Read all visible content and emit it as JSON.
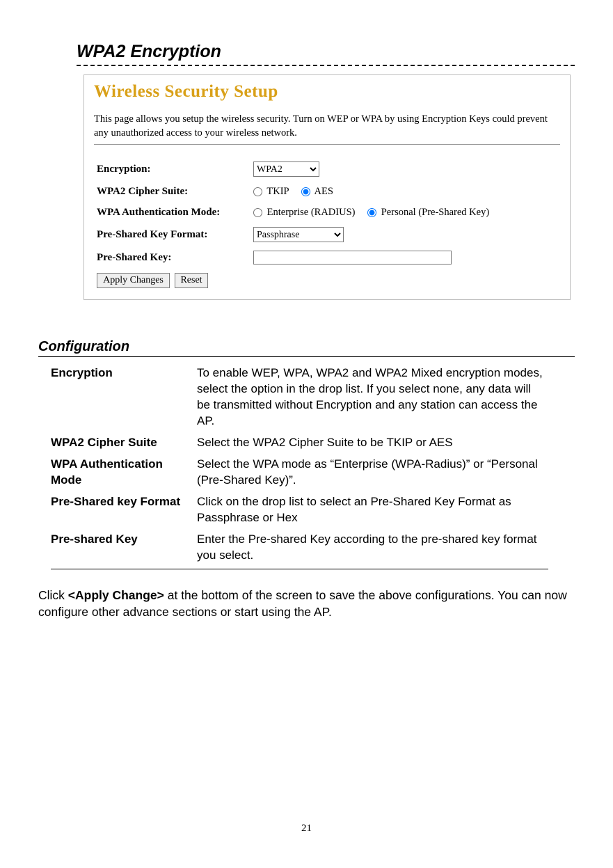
{
  "heading": "WPA2 Encryption",
  "screenshot": {
    "title": "Wireless Security Setup",
    "description": "This page allows you setup the wireless security. Turn on WEP or WPA by using Encryption Keys could prevent any unauthorized access to your wireless network.",
    "fields": {
      "encryption_label": "Encryption:",
      "encryption_value": "WPA2",
      "cipher_label": "WPA2 Cipher Suite:",
      "cipher_tkip": "TKIP",
      "cipher_aes": "AES",
      "auth_label": "WPA Authentication Mode:",
      "auth_enterprise": "Enterprise (RADIUS)",
      "auth_personal": "Personal (Pre-Shared Key)",
      "pskformat_label": "Pre-Shared Key Format:",
      "pskformat_value": "Passphrase",
      "psk_label": "Pre-Shared Key:",
      "apply_btn": "Apply Changes",
      "reset_btn": "Reset"
    }
  },
  "config": {
    "heading": "Configuration",
    "rows": [
      {
        "term": "Encryption",
        "desc": "To enable WEP, WPA, WPA2 and WPA2 Mixed encryption modes, select the option in the drop list. If you select none, any data will be transmitted without Encryption and any station can access the AP."
      },
      {
        "term": "WPA2 Cipher Suite",
        "desc": "Select the WPA2 Cipher Suite to be TKIP or AES"
      },
      {
        "term": "WPA Authentication Mode",
        "desc": "Select the WPA mode as “Enterprise (WPA-Radius)” or “Personal (Pre-Shared Key)”."
      },
      {
        "term": "Pre-Shared key Format",
        "desc": "Click on the drop list to select an Pre-Shared Key Format as Passphrase or Hex"
      },
      {
        "term": "Pre-shared Key",
        "desc": "Enter the Pre-shared Key according to the pre-shared key format you select."
      }
    ]
  },
  "closing": {
    "pre": "Click ",
    "bold": "<Apply Change>",
    "post": " at the bottom of the screen to save the above configurations. You can now configure other advance sections or start using the AP."
  },
  "page_number": "21"
}
